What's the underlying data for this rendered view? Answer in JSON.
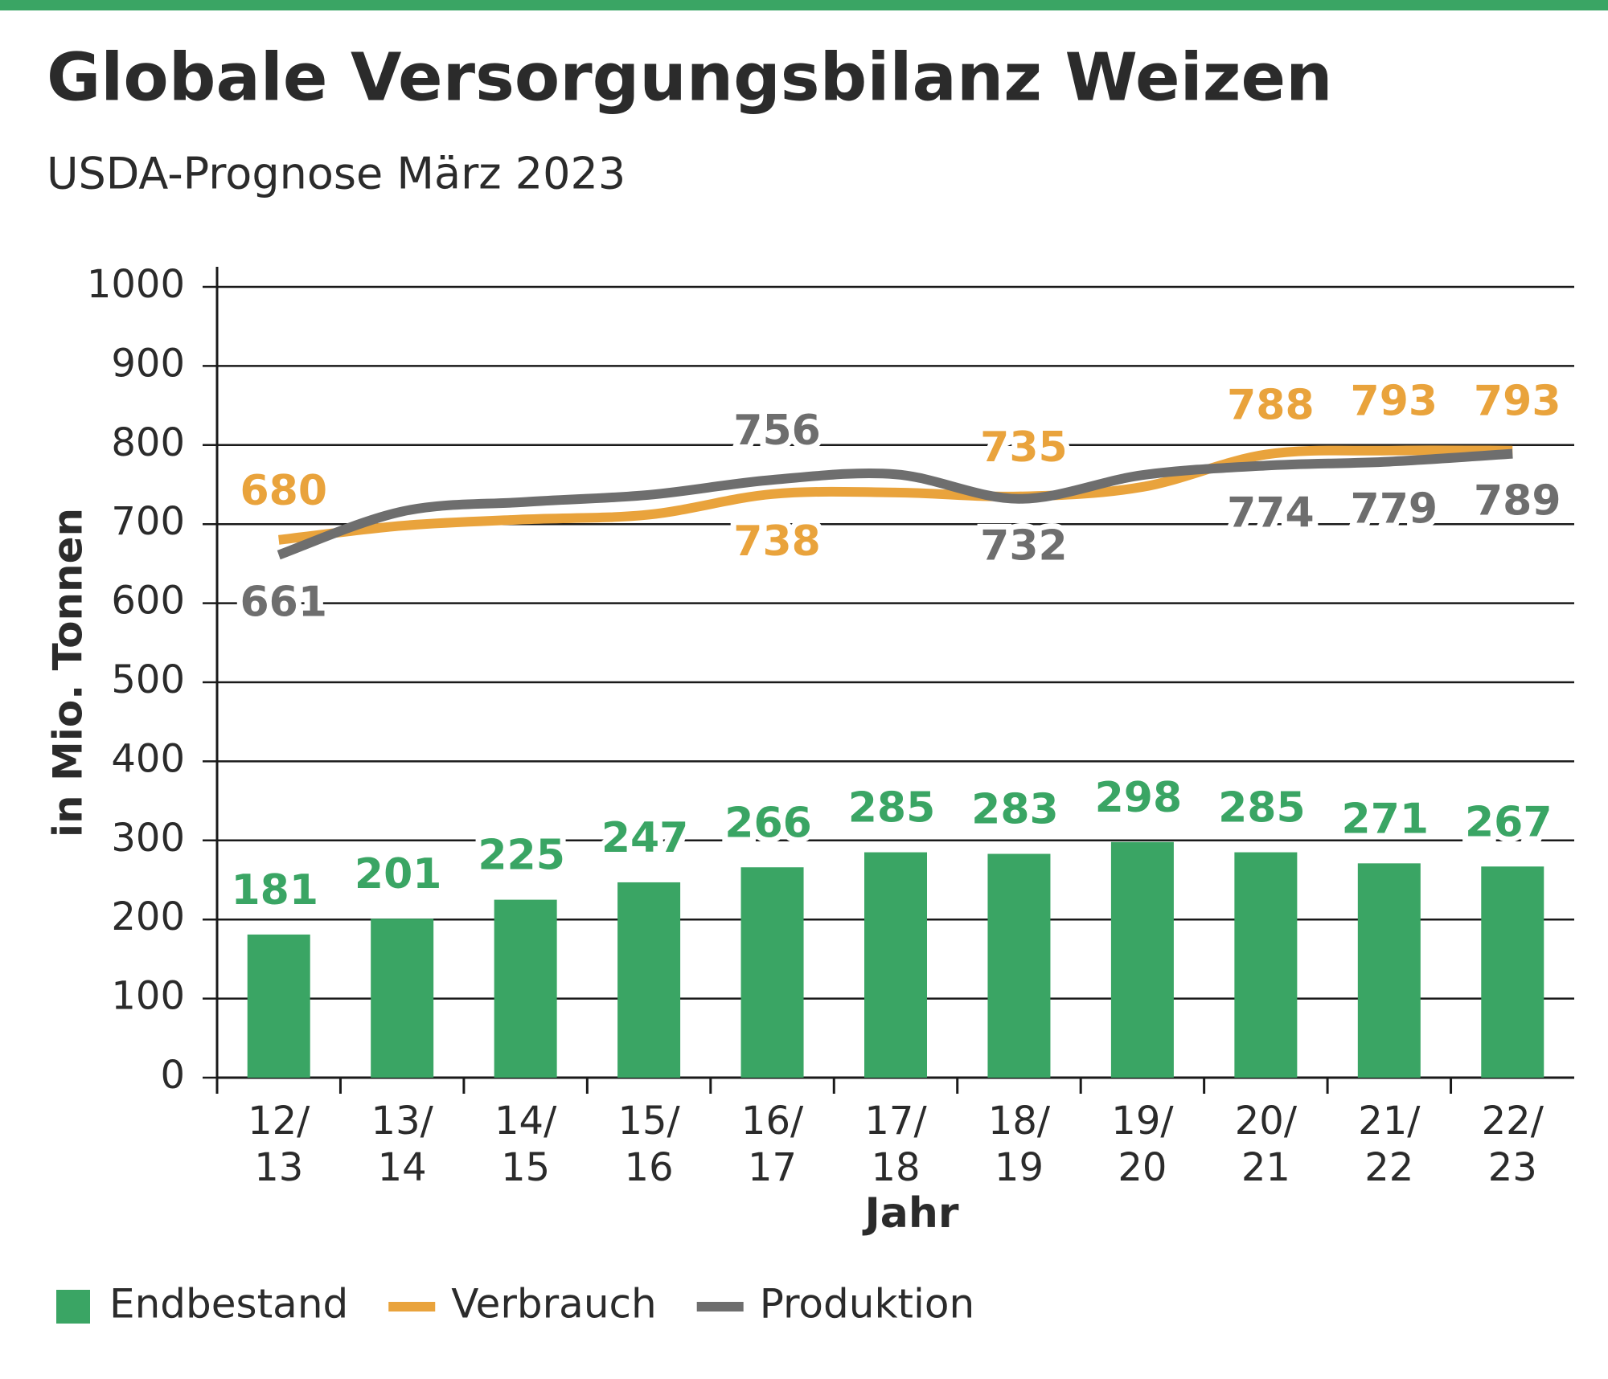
{
  "chart_data": {
    "type": "bar-line",
    "title": "Globale Versorgungsbilanz Weizen",
    "subtitle": "USDA-Prognose März 2023",
    "x_label": "Jahr",
    "y_label": "in Mio. Tonnen",
    "categories": [
      "12/13",
      "13/14",
      "14/15",
      "15/16",
      "16/17",
      "17/18",
      "18/19",
      "19/20",
      "20/21",
      "21/22",
      "22/23"
    ],
    "series": [
      {
        "name": "Endbestand",
        "type": "bar",
        "color": "#3aa564",
        "values": [
          181,
          201,
          225,
          247,
          266,
          285,
          283,
          298,
          285,
          271,
          267
        ]
      },
      {
        "name": "Verbrauch",
        "type": "line",
        "color": "#e9a33c",
        "values": [
          680,
          698,
          706,
          712,
          738,
          740,
          735,
          747,
          788,
          793,
          793
        ],
        "value_labels": [
          "680",
          null,
          null,
          null,
          "738",
          null,
          "735",
          null,
          "788",
          "793",
          "793"
        ]
      },
      {
        "name": "Produktion",
        "type": "line",
        "color": "#6e6e6e",
        "values": [
          661,
          716,
          728,
          737,
          756,
          763,
          732,
          762,
          774,
          779,
          789
        ],
        "value_labels": [
          "661",
          null,
          null,
          null,
          "756",
          null,
          "732",
          null,
          "774",
          "779",
          "789"
        ]
      }
    ],
    "ylim": [
      0,
      1000
    ],
    "yticks": [
      0,
      100,
      200,
      300,
      400,
      500,
      600,
      700,
      800,
      900,
      1000
    ],
    "grid": true,
    "legend": "bottom"
  }
}
